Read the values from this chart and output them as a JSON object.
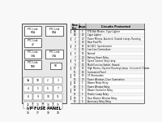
{
  "footer": "I/P FUSE PANEL",
  "bg_color": "#f8f8f8",
  "table_header": [
    "Fuse\nPos.",
    "Amps",
    "Circuits Protected"
  ],
  "fuse_data": [
    [
      "1A",
      "5",
      "P/W Belt Minder, Cigar Lighter"
    ],
    [
      "1B",
      "10",
      "Cigar Lighter"
    ],
    [
      "2",
      "20",
      "Power Mirrors, Autolock, Outside Lamps, Running"
    ],
    [
      "3",
      "20",
      "Rear Seat P/L"
    ],
    [
      "4",
      "10",
      "A/C-BCC, Speedometer"
    ],
    [
      "5",
      "10",
      "Low Line Commodore"
    ],
    [
      "6",
      "10",
      "Sunroof"
    ],
    [
      "7",
      "20",
      "Battery Saver Relay"
    ],
    [
      "8",
      "10",
      "Speed Control, Stop Lamp"
    ],
    [
      "9",
      "10",
      "Multi Function Switch, Hazard"
    ],
    [
      "10",
      "10",
      "High Beams, Daytime Running Lamps, Instrument Cluster"
    ],
    [
      "11",
      "10",
      "Instrument Panel"
    ],
    [
      "12",
      "10",
      "I/P Illumination"
    ],
    [
      "13",
      "20",
      "Power Windows, Door Illumination"
    ],
    [
      "14",
      "5",
      "Blower Motor Relay"
    ],
    [
      "15",
      "5",
      "Power Window Relay"
    ],
    [
      "16",
      "5",
      "Blower Controller Relay"
    ],
    [
      "17",
      "5",
      "Flasher Lamp Relay"
    ],
    [
      "18",
      "5",
      "Rear Washer Window Relay"
    ],
    [
      "19",
      "5",
      "Accessory Relay Relay"
    ]
  ],
  "panel_bg": "#e8e8e8",
  "cell_bg": "#ffffff",
  "header_bg": "#cccccc"
}
